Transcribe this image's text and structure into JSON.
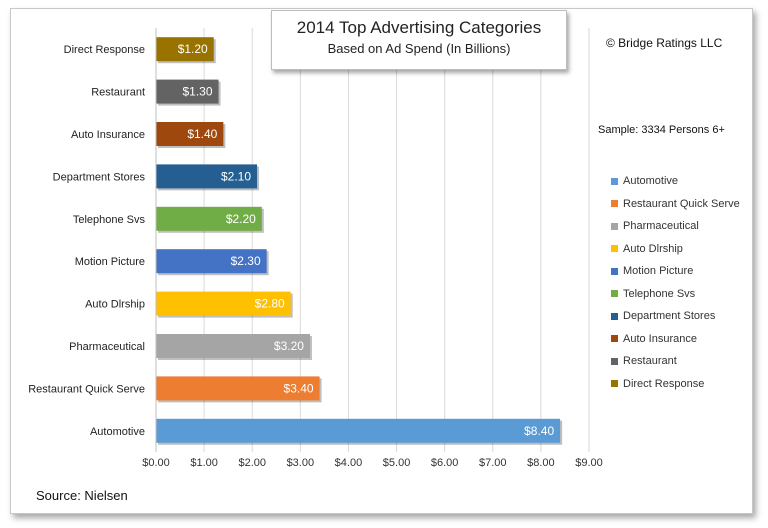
{
  "title": "2014 Top Advertising Categories",
  "subtitle": "Based on Ad Spend (In Billions)",
  "copyright": "© Bridge Ratings LLC",
  "sample": "Sample: 3334 Persons 6+",
  "source": "Source: Nielsen",
  "colors": {
    "Automotive": "#5b9bd5",
    "Restaurant Quick Serve": "#ed7d31",
    "Pharmaceutical": "#a5a5a5",
    "Auto Dlrship": "#ffc000",
    "Motion Picture": "#4472c4",
    "Telephone Svs": "#70ad47",
    "Department Stores": "#255e91",
    "Auto Insurance": "#9e480e",
    "Restaurant": "#636363",
    "Direct Response": "#997300"
  },
  "legend": [
    "Automotive",
    "Restaurant Quick Serve",
    "Pharmaceutical",
    "Auto Dlrship",
    "Motion Picture",
    "Telephone Svs",
    "Department Stores",
    "Auto Insurance",
    "Restaurant",
    "Direct Response"
  ],
  "chart_data": {
    "type": "bar",
    "orientation": "horizontal",
    "title": "2014 Top Advertising Categories",
    "subtitle": "Based on Ad Spend (In Billions)",
    "categories": [
      "Direct Response",
      "Restaurant",
      "Auto Insurance",
      "Department Stores",
      "Telephone Svs",
      "Motion Picture",
      "Auto Dlrship",
      "Pharmaceutical",
      "Restaurant Quick Serve",
      "Automotive"
    ],
    "values": [
      1.2,
      1.3,
      1.4,
      2.1,
      2.2,
      2.3,
      2.8,
      3.2,
      3.4,
      8.4
    ],
    "data_labels": [
      "$1.20",
      "$1.30",
      "$1.40",
      "$2.10",
      "$2.20",
      "$2.30",
      "$2.80",
      "$3.20",
      "$3.40",
      "$8.40"
    ],
    "xlim": [
      0,
      9
    ],
    "x_ticks": [
      "$0.00",
      "$1.00",
      "$2.00",
      "$3.00",
      "$4.00",
      "$5.00",
      "$6.00",
      "$7.00",
      "$8.00",
      "$9.00"
    ],
    "grid": "vertical",
    "legend_position": "right"
  }
}
